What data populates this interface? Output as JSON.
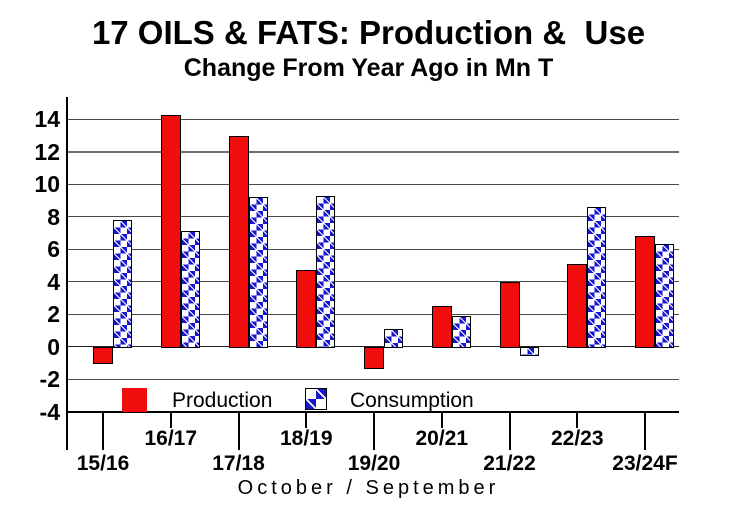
{
  "title": "17 OILS & FATS: Production &  Use",
  "subtitle": "Change From Year Ago in Mn T",
  "legend": {
    "production_label": "Production",
    "consumption_label": "Consumption"
  },
  "colors": {
    "production": "#f20d0d",
    "consumption": "#1717cf",
    "gridline": "#4a4a4a",
    "gridline_major": "#6e6e6e",
    "axis": "#000000"
  },
  "chart_data": {
    "type": "bar",
    "title": "17 OILS & FATS: Production &  Use",
    "subtitle": "Change From Year Ago in Mn T",
    "xlabel": "October / September",
    "ylabel": "",
    "categories": [
      "15/16",
      "16/17",
      "17/18",
      "18/19",
      "19/20",
      "20/21",
      "21/22",
      "22/23",
      "23/24F"
    ],
    "series": [
      {
        "name": "Production",
        "color": "#f20d0d",
        "style": "solid",
        "values": [
          -1.0,
          14.3,
          13.0,
          4.7,
          -1.3,
          2.5,
          4.0,
          5.1,
          6.8
        ]
      },
      {
        "name": "Consumption",
        "color": "#1717cf",
        "style": "diamond-pattern",
        "values": [
          7.8,
          7.1,
          9.2,
          9.3,
          1.1,
          1.9,
          -0.5,
          8.6,
          6.3
        ]
      }
    ],
    "ylim": [
      -4,
      14
    ],
    "yticks": [
      14,
      12,
      10,
      8,
      6,
      4,
      2,
      0,
      -2,
      -4
    ],
    "grid": true,
    "legend_position": "bottom-inside",
    "x_label_rows": "staggered"
  }
}
